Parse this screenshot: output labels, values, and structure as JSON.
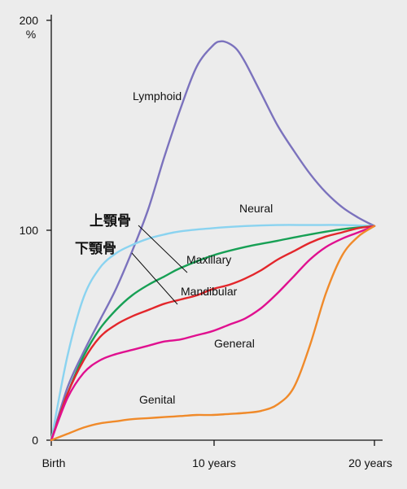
{
  "chart_data": {
    "type": "line",
    "title": "",
    "xlabel": "",
    "ylabel": "%",
    "x_ticks": [
      "Birth",
      "10 years",
      "20 years"
    ],
    "y_ticks": [
      "0",
      "100",
      "200"
    ],
    "xlim": [
      0,
      20
    ],
    "ylim": [
      0,
      200
    ],
    "grid": false,
    "legend": "none",
    "series": [
      {
        "name": "Lymphoid",
        "color": "#7b72bd",
        "x": [
          0,
          1,
          2,
          3,
          4,
          5,
          6,
          7,
          8,
          9,
          10,
          10.5,
          11,
          11.5,
          12,
          13,
          14,
          15,
          16,
          17,
          18,
          19,
          20
        ],
        "y": [
          0,
          25,
          42,
          57,
          72,
          90,
          110,
          135,
          158,
          178,
          188,
          190,
          189,
          186,
          180,
          165,
          150,
          138,
          127,
          118,
          111,
          106,
          102
        ]
      },
      {
        "name": "Neural",
        "color": "#8ad3f0",
        "x": [
          0,
          1,
          2,
          3,
          4,
          5,
          6,
          7,
          8,
          10,
          12,
          14,
          16,
          18,
          20
        ],
        "y": [
          0,
          40,
          68,
          82,
          89,
          93,
          96,
          98,
          99.5,
          101,
          102,
          102.5,
          102.5,
          102.5,
          102
        ]
      },
      {
        "name": "Maxillary",
        "color": "#17a055",
        "x": [
          0,
          1,
          2,
          3,
          4,
          5,
          6,
          7,
          8,
          10,
          12,
          14,
          16,
          18,
          20
        ],
        "y": [
          0,
          22,
          40,
          53,
          62,
          69,
          74,
          78,
          82,
          88,
          92,
          95,
          98,
          100.5,
          102
        ]
      },
      {
        "name": "Mandibular",
        "color": "#e3262b",
        "x": [
          0,
          1,
          2,
          3,
          4,
          5,
          6,
          7,
          8,
          9,
          10,
          11,
          12,
          13,
          14,
          15,
          16,
          17,
          18,
          19,
          20
        ],
        "y": [
          0,
          22,
          38,
          49,
          55,
          59,
          62,
          65,
          67,
          69,
          72,
          74,
          77,
          81,
          86,
          90,
          94,
          97,
          99,
          101,
          102
        ]
      },
      {
        "name": "General",
        "color": "#e0108f",
        "x": [
          0,
          1,
          2,
          3,
          4,
          5,
          6,
          7,
          8,
          9,
          10,
          11,
          12,
          13,
          14,
          15,
          16,
          17,
          18,
          19,
          20
        ],
        "y": [
          0,
          20,
          32,
          38,
          41,
          43,
          45,
          47,
          48,
          50,
          52,
          55,
          58,
          63,
          70,
          78,
          86,
          92,
          96,
          99,
          102
        ]
      },
      {
        "name": "Genital",
        "color": "#f08a2a",
        "x": [
          0,
          1,
          2,
          3,
          4,
          5,
          6,
          7,
          8,
          9,
          10,
          11,
          12,
          13,
          14,
          15,
          16,
          17,
          18,
          19,
          20
        ],
        "y": [
          0,
          3,
          6,
          8,
          9,
          10,
          10.5,
          11,
          11.5,
          12,
          12,
          12.5,
          13,
          14,
          17,
          25,
          45,
          70,
          88,
          97,
          102
        ]
      }
    ],
    "annotations": [
      {
        "text": "Lymphoid"
      },
      {
        "text": "Neural"
      },
      {
        "text": "Maxillary"
      },
      {
        "text": "Mandibular"
      },
      {
        "text": "General"
      },
      {
        "text": "Genital"
      },
      {
        "text": "上顎骨"
      },
      {
        "text": "下顎骨"
      }
    ]
  }
}
